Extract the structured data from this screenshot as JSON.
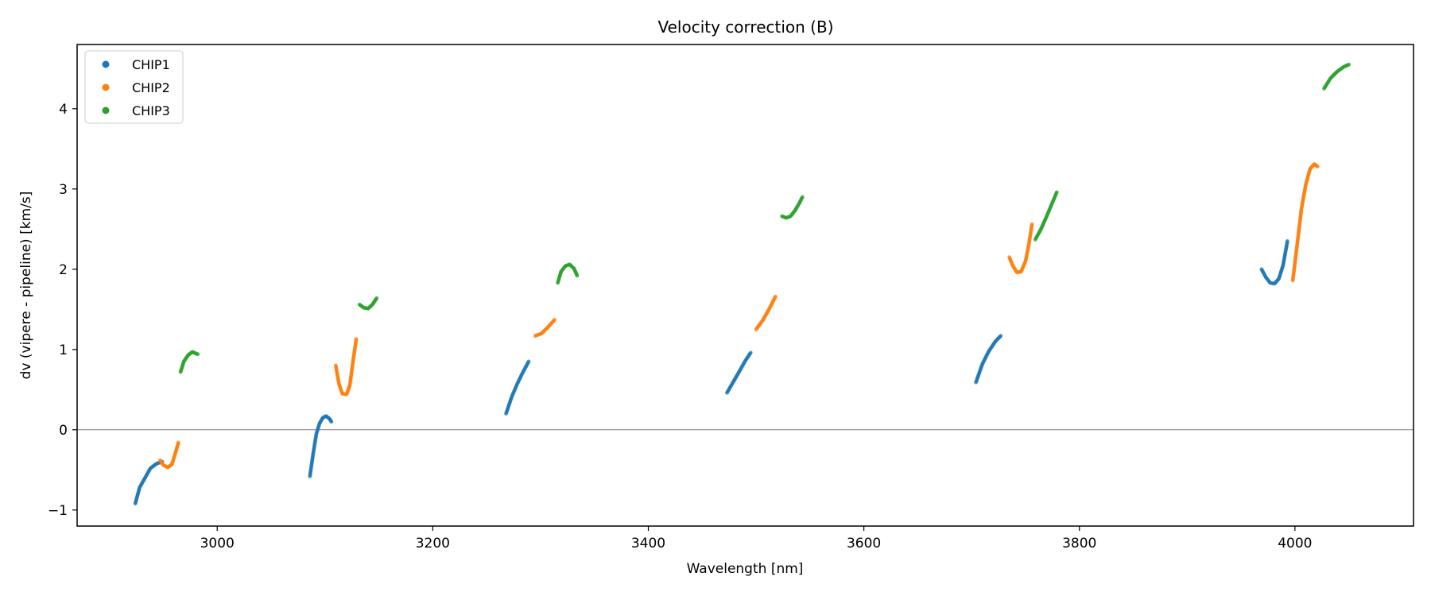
{
  "chart_data": {
    "type": "scatter",
    "title": "Velocity correction (B)",
    "xlabel": "Wavelength [nm]",
    "ylabel": "dv (vipere - pipeline) [km/s]",
    "xlim": [
      2870,
      4110
    ],
    "ylim": [
      -1.2,
      4.8
    ],
    "xticks": [
      3000,
      3200,
      3400,
      3600,
      3800,
      4000
    ],
    "yticks": [
      -1,
      0,
      1,
      2,
      3,
      4
    ],
    "xtick_labels": [
      "3000",
      "3200",
      "3400",
      "3600",
      "3800",
      "4000"
    ],
    "ytick_labels": [
      "−1",
      "0",
      "1",
      "2",
      "3",
      "4"
    ],
    "zero_line": true,
    "grid": false,
    "legend_position": "top-left",
    "series": [
      {
        "name": "CHIP1",
        "color": "#1f77b4",
        "segments": [
          [
            [
              2924,
              -0.92
            ],
            [
              2928,
              -0.72
            ],
            [
              2933,
              -0.6
            ],
            [
              2938,
              -0.48
            ],
            [
              2944,
              -0.42
            ],
            [
              2949,
              -0.4
            ]
          ],
          [
            [
              3086,
              -0.58
            ],
            [
              3089,
              -0.3
            ],
            [
              3092,
              -0.05
            ],
            [
              3095,
              0.08
            ],
            [
              3098,
              0.15
            ],
            [
              3101,
              0.17
            ],
            [
              3104,
              0.14
            ],
            [
              3106,
              0.1
            ]
          ],
          [
            [
              3268,
              0.2
            ],
            [
              3273,
              0.4
            ],
            [
              3278,
              0.56
            ],
            [
              3283,
              0.7
            ],
            [
              3289,
              0.85
            ]
          ],
          [
            [
              3473,
              0.46
            ],
            [
              3479,
              0.6
            ],
            [
              3485,
              0.74
            ],
            [
              3490,
              0.86
            ],
            [
              3495,
              0.96
            ]
          ],
          [
            [
              3704,
              0.59
            ],
            [
              3710,
              0.82
            ],
            [
              3716,
              0.98
            ],
            [
              3722,
              1.1
            ],
            [
              3727,
              1.17
            ]
          ],
          [
            [
              3969,
              2.0
            ],
            [
              3973,
              1.9
            ],
            [
              3977,
              1.83
            ],
            [
              3981,
              1.82
            ],
            [
              3985,
              1.88
            ],
            [
              3989,
              2.05
            ],
            [
              3993,
              2.35
            ]
          ]
        ]
      },
      {
        "name": "CHIP2",
        "color": "#ff7f0e",
        "segments": [
          [
            [
              2947,
              -0.38
            ],
            [
              2950,
              -0.44
            ],
            [
              2954,
              -0.47
            ],
            [
              2958,
              -0.43
            ],
            [
              2961,
              -0.3
            ],
            [
              2964,
              -0.16
            ]
          ],
          [
            [
              3110,
              0.8
            ],
            [
              3113,
              0.57
            ],
            [
              3116,
              0.45
            ],
            [
              3120,
              0.44
            ],
            [
              3123,
              0.55
            ],
            [
              3126,
              0.85
            ],
            [
              3129,
              1.13
            ]
          ],
          [
            [
              3295,
              1.17
            ],
            [
              3301,
              1.2
            ],
            [
              3307,
              1.28
            ],
            [
              3313,
              1.37
            ]
          ],
          [
            [
              3500,
              1.25
            ],
            [
              3506,
              1.36
            ],
            [
              3512,
              1.5
            ],
            [
              3518,
              1.66
            ]
          ],
          [
            [
              3735,
              2.15
            ],
            [
              3738,
              2.05
            ],
            [
              3742,
              1.96
            ],
            [
              3746,
              1.97
            ],
            [
              3750,
              2.1
            ],
            [
              3753,
              2.3
            ],
            [
              3756,
              2.56
            ]
          ],
          [
            [
              3998,
              1.86
            ],
            [
              4002,
              2.3
            ],
            [
              4006,
              2.75
            ],
            [
              4010,
              3.05
            ],
            [
              4014,
              3.25
            ],
            [
              4018,
              3.31
            ],
            [
              4021,
              3.28
            ]
          ]
        ]
      },
      {
        "name": "CHIP3",
        "color": "#2ca02c",
        "segments": [
          [
            [
              2966,
              0.72
            ],
            [
              2969,
              0.85
            ],
            [
              2973,
              0.93
            ],
            [
              2977,
              0.97
            ],
            [
              2982,
              0.94
            ]
          ],
          [
            [
              3132,
              1.56
            ],
            [
              3136,
              1.52
            ],
            [
              3140,
              1.51
            ],
            [
              3144,
              1.56
            ],
            [
              3148,
              1.64
            ]
          ],
          [
            [
              3316,
              1.83
            ],
            [
              3319,
              1.97
            ],
            [
              3323,
              2.04
            ],
            [
              3327,
              2.06
            ],
            [
              3331,
              2.01
            ],
            [
              3334,
              1.92
            ]
          ],
          [
            [
              3524,
              2.66
            ],
            [
              3528,
              2.64
            ],
            [
              3532,
              2.66
            ],
            [
              3536,
              2.73
            ],
            [
              3540,
              2.82
            ],
            [
              3543,
              2.9
            ]
          ],
          [
            [
              3759,
              2.37
            ],
            [
              3764,
              2.49
            ],
            [
              3769,
              2.64
            ],
            [
              3774,
              2.8
            ],
            [
              3779,
              2.96
            ]
          ],
          [
            [
              4027,
              4.25
            ],
            [
              4033,
              4.38
            ],
            [
              4039,
              4.46
            ],
            [
              4045,
              4.52
            ],
            [
              4050,
              4.55
            ]
          ]
        ]
      }
    ]
  }
}
